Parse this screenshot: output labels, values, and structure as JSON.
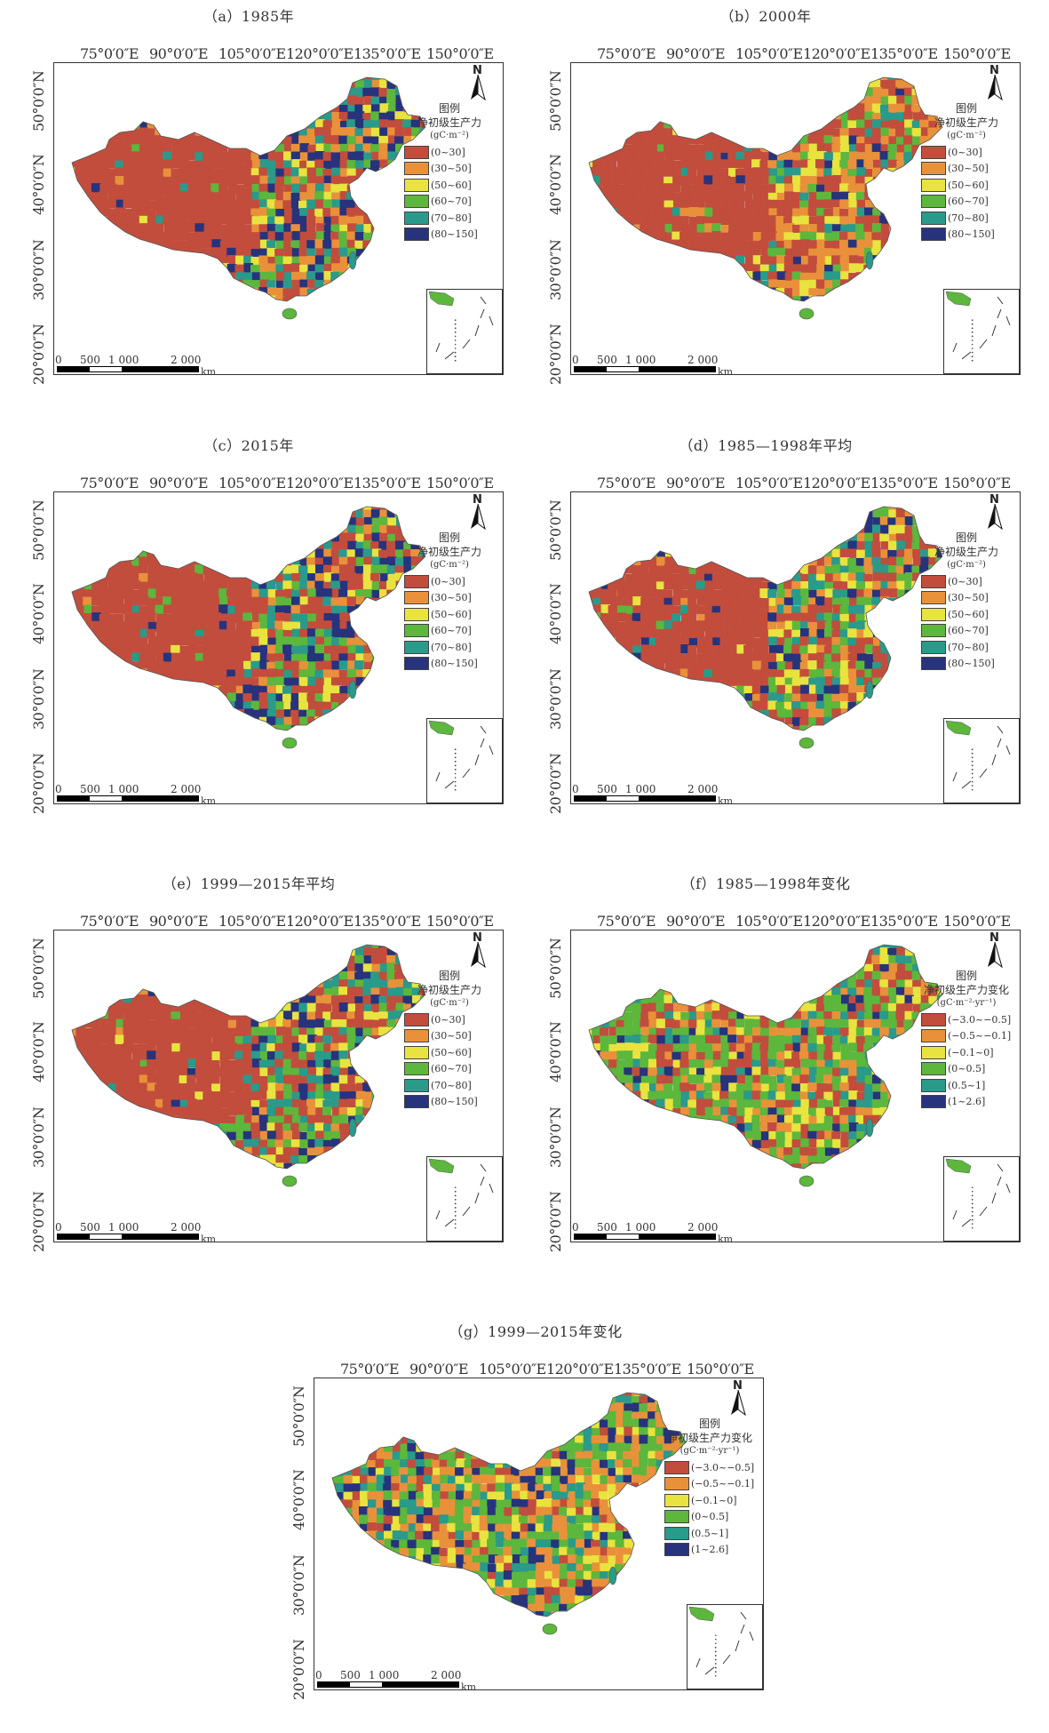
{
  "lon_labels": [
    "75°0′0″E",
    "90°0′0″E",
    "105°0′0″E",
    "120°0′0″E",
    "135°0′0″E",
    "150°0′0″E"
  ],
  "lat_labels": [
    "50°0′0″N",
    "40°0′0″N",
    "30°0′0″N",
    "20°0′0″N"
  ],
  "north_arrow": "N",
  "scale": {
    "ticks": [
      "0",
      "500",
      "1 000",
      "2 000"
    ],
    "unit": "km"
  },
  "legend_title": "图例",
  "npp_legend": {
    "subtitle": "净初级生产力",
    "unit": "(gC·m⁻²)",
    "classes": [
      {
        "label": "(0~30]",
        "color": "#c24d3c"
      },
      {
        "label": "(30~50]",
        "color": "#e9913a"
      },
      {
        "label": "(50~60]",
        "color": "#e8e33f"
      },
      {
        "label": "(60~70]",
        "color": "#5cb73c"
      },
      {
        "label": "(70~80]",
        "color": "#2a9a8a"
      },
      {
        "label": "(80~150]",
        "color": "#27337c"
      }
    ]
  },
  "change_legend": {
    "subtitle": "净初级生产力变化",
    "unit": "(gC·m⁻²·yr⁻¹)",
    "classes": [
      {
        "label": "(−3.0~−0.5]",
        "color": "#c24d3c"
      },
      {
        "label": "(−0.5~−0.1]",
        "color": "#e9913a"
      },
      {
        "label": "(−0.1~0]",
        "color": "#e8e33f"
      },
      {
        "label": "(0~0.5]",
        "color": "#5cb73c"
      },
      {
        "label": "(0.5~1]",
        "color": "#2a9a8a"
      },
      {
        "label": "(1~2.6]",
        "color": "#27337c"
      }
    ]
  },
  "panels": [
    {
      "caption": "（a）1985年",
      "legend": "npp"
    },
    {
      "caption": "（b）2000年",
      "legend": "npp"
    },
    {
      "caption": "（c）2015年",
      "legend": "npp"
    },
    {
      "caption": "（d）1985—1998年平均",
      "legend": "npp"
    },
    {
      "caption": "（e）1999—2015年平均",
      "legend": "npp"
    },
    {
      "caption": "（f）1985—1998年变化",
      "legend": "change"
    },
    {
      "caption": "（g）1999—2015年变化",
      "legend": "change"
    }
  ]
}
